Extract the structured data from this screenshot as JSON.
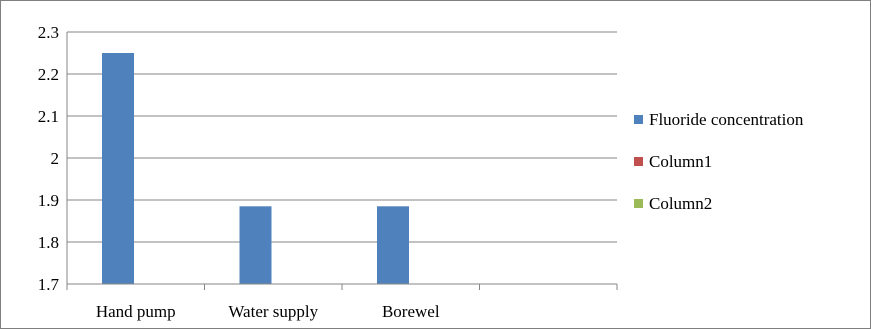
{
  "chart_data": {
    "type": "bar",
    "categories": [
      "Hand pump",
      "Water supply",
      "Borewel",
      ""
    ],
    "series": [
      {
        "name": "Fluoride concentration",
        "color": "#4f81bd",
        "values": [
          2.25,
          1.885,
          1.885,
          null
        ]
      },
      {
        "name": "Column1",
        "color": "#c0504d",
        "values": [
          null,
          null,
          null,
          null
        ]
      },
      {
        "name": "Column2",
        "color": "#9bbb59",
        "values": [
          null,
          null,
          null,
          null
        ]
      }
    ],
    "ylim": [
      1.7,
      2.3
    ],
    "yticks": [
      "1.7",
      "1.8",
      "1.9",
      "2",
      "2.1",
      "2.2",
      "2.3"
    ],
    "grid": true,
    "legend_position": "right"
  }
}
